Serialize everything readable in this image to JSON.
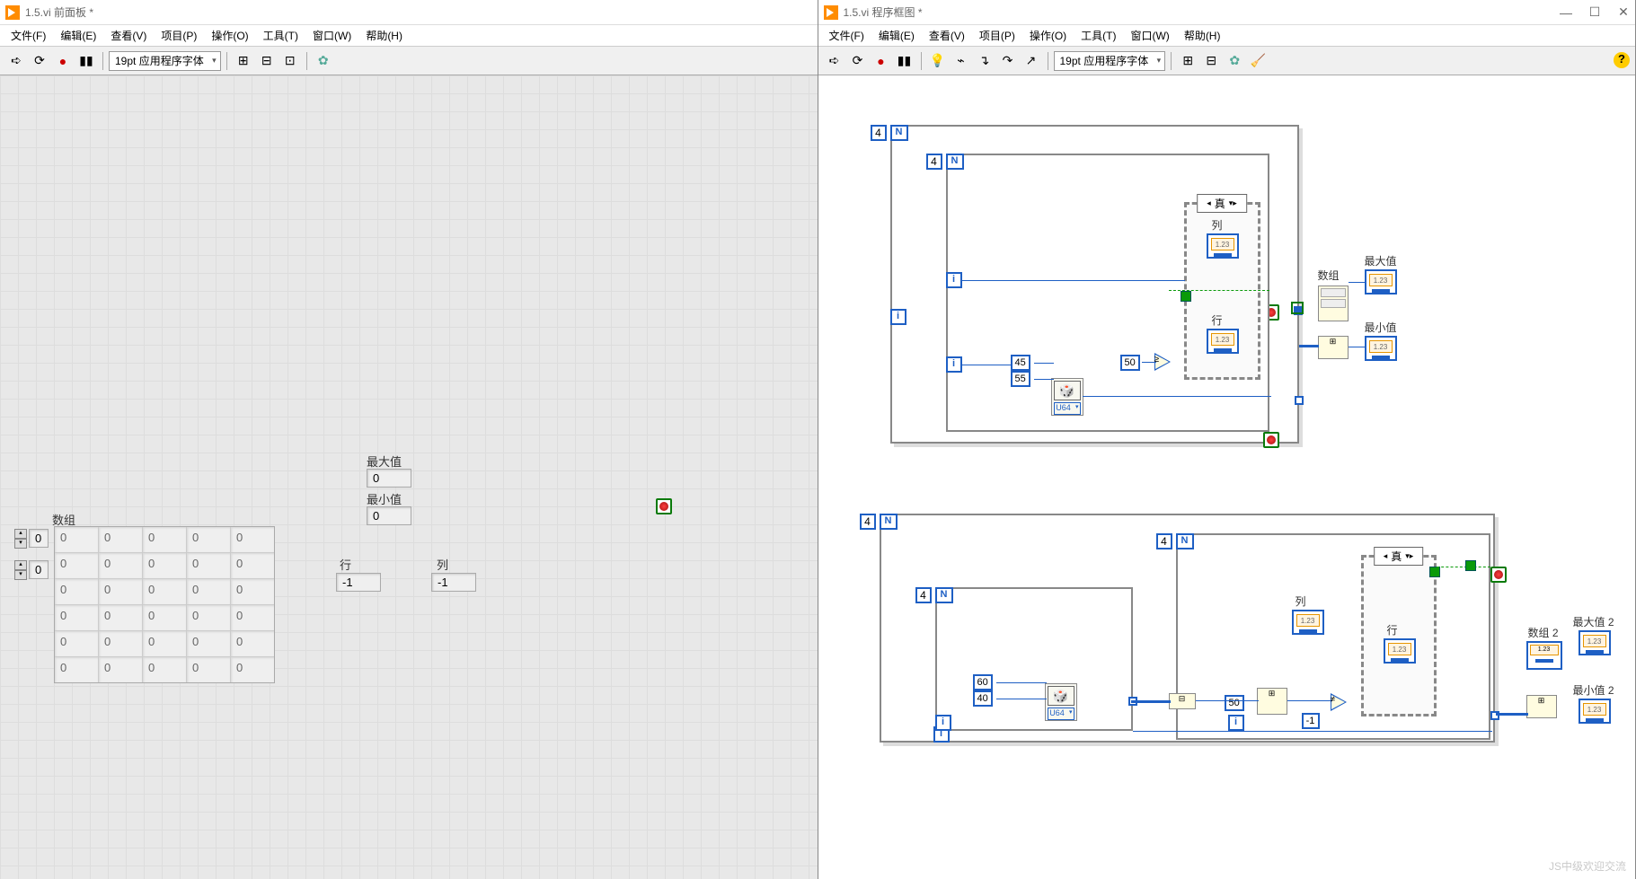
{
  "left_window": {
    "title": "1.5.vi 前面板 *",
    "menus": [
      "文件(F)",
      "编辑(E)",
      "查看(V)",
      "项目(P)",
      "操作(O)",
      "工具(T)",
      "窗口(W)",
      "帮助(H)"
    ],
    "font_selector": "19pt 应用程序字体",
    "labels": {
      "array": "数组",
      "max": "最大值",
      "min": "最小值",
      "row": "行",
      "col": "列"
    },
    "values": {
      "idx0": "0",
      "idx1": "0",
      "max": "0",
      "min": "0",
      "row": "-1",
      "col": "-1",
      "array_cells": [
        "0",
        "0",
        "0",
        "0",
        "0",
        "0",
        "0",
        "0",
        "0",
        "0",
        "0",
        "0",
        "0",
        "0",
        "0",
        "0",
        "0",
        "0",
        "0",
        "0",
        "0",
        "0",
        "0",
        "0",
        "0",
        "0",
        "0",
        "0",
        "0",
        "0"
      ]
    }
  },
  "right_window": {
    "title": "1.5.vi 程序框图 *",
    "menus": [
      "文件(F)",
      "编辑(E)",
      "查看(V)",
      "项目(P)",
      "操作(O)",
      "工具(T)",
      "窗口(W)",
      "帮助(H)"
    ],
    "font_selector": "19pt 应用程序字体",
    "diagram1": {
      "outer_n": "4",
      "inner_n": "4",
      "rand_lo": "45",
      "rand_hi": "55",
      "rand_type": "U64",
      "cmp_const": "50",
      "case_val": "真",
      "col_label": "列",
      "row_label": "行",
      "array_label": "数组",
      "max_label": "最大值",
      "min_label": "最小值",
      "ind_text": "1.23"
    },
    "diagram2": {
      "outer_n": "4",
      "mid_n": "4",
      "inner_n": "4",
      "rand_lo": "60",
      "rand_hi": "40",
      "rand_type": "U64",
      "cmp_const": "50",
      "neg1": "-1",
      "case_val": "真",
      "col_label": "列",
      "row_label": "行",
      "array_label": "数组 2",
      "max_label": "最大值 2",
      "min_label": "最小值 2",
      "ind_text": "1.23"
    },
    "watermark": "JS中级欢迎交流"
  },
  "icons": {
    "run": "➪",
    "run_cont": "⟳",
    "abort": "●",
    "pause": "▮▮",
    "bulb": "💡",
    "step": "↷",
    "align": "⊞",
    "distribute": "⊟",
    "resize": "⊡",
    "reorder": "✿",
    "cleanup": "🧹"
  }
}
